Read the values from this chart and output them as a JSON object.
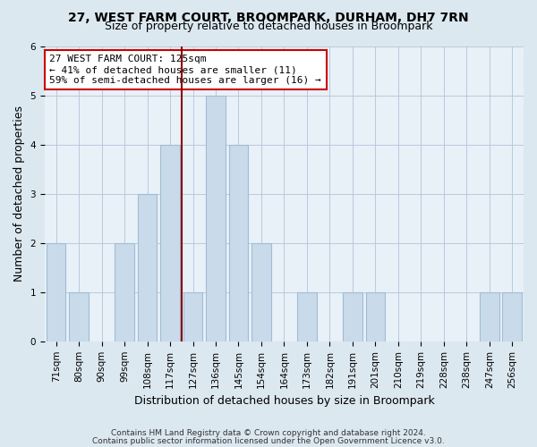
{
  "title": "27, WEST FARM COURT, BROOMPARK, DURHAM, DH7 7RN",
  "subtitle": "Size of property relative to detached houses in Broompark",
  "xlabel": "Distribution of detached houses by size in Broompark",
  "ylabel": "Number of detached properties",
  "categories": [
    "71sqm",
    "80sqm",
    "90sqm",
    "99sqm",
    "108sqm",
    "117sqm",
    "127sqm",
    "136sqm",
    "145sqm",
    "154sqm",
    "164sqm",
    "173sqm",
    "182sqm",
    "191sqm",
    "201sqm",
    "210sqm",
    "219sqm",
    "228sqm",
    "238sqm",
    "247sqm",
    "256sqm"
  ],
  "values": [
    2,
    1,
    0,
    2,
    3,
    4,
    1,
    5,
    4,
    2,
    0,
    1,
    0,
    1,
    1,
    0,
    0,
    0,
    0,
    1,
    1
  ],
  "bar_color": "#c9daea",
  "bar_edge_color": "#a0bdd4",
  "subject_line_color": "#8b0000",
  "annotation_text": "27 WEST FARM COURT: 125sqm\n← 41% of detached houses are smaller (11)\n59% of semi-detached houses are larger (16) →",
  "annotation_box_color": "#ffffff",
  "annotation_box_edge_color": "#cc0000",
  "ylim": [
    0,
    6
  ],
  "yticks": [
    0,
    1,
    2,
    3,
    4,
    5,
    6
  ],
  "footer_line1": "Contains HM Land Registry data © Crown copyright and database right 2024.",
  "footer_line2": "Contains public sector information licensed under the Open Government Licence v3.0.",
  "bg_color": "#dce8f0",
  "plot_bg_color": "#e8f0f8",
  "title_fontsize": 10,
  "subtitle_fontsize": 9,
  "tick_fontsize": 7.5,
  "ylabel_fontsize": 9,
  "xlabel_fontsize": 9,
  "footer_fontsize": 6.5
}
